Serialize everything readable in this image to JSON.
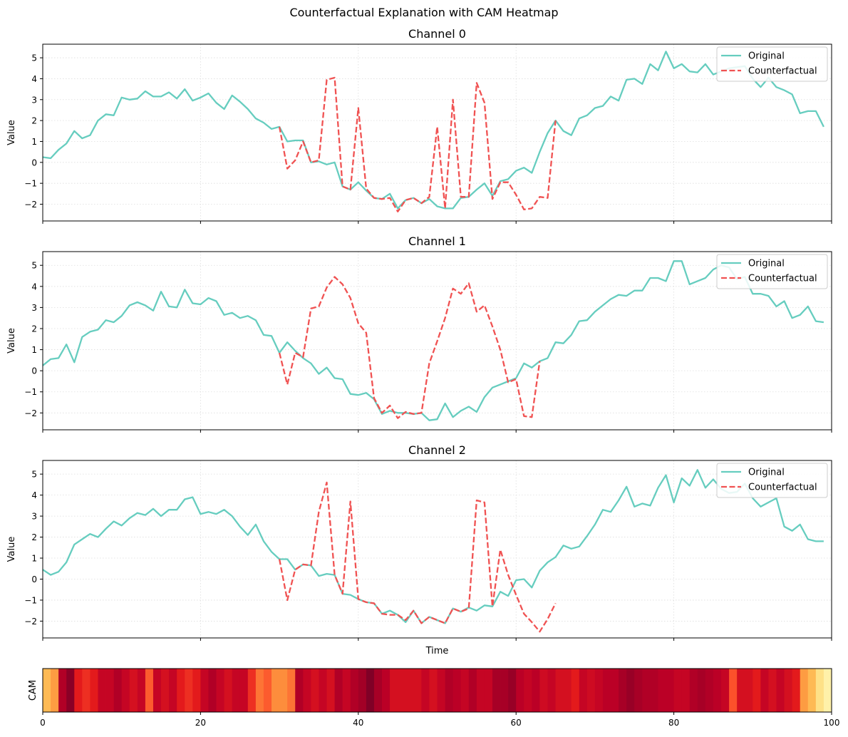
{
  "suptitle": "Counterfactual Explanation with CAM Heatmap",
  "colors": {
    "original": "#66cdbf",
    "counterfactual": "#f05252"
  },
  "chart_data": [
    {
      "type": "line",
      "title": "Channel 0",
      "ylabel": "Value",
      "xlabel": "",
      "xlim": [
        0,
        100
      ],
      "ylim": [
        -2.8,
        5.65
      ],
      "yticks": [
        -2,
        -1,
        0,
        1,
        2,
        3,
        4,
        5
      ],
      "xticks": [
        0,
        20,
        40,
        60,
        80,
        100
      ],
      "show_xticklabels": false,
      "grid": true,
      "legend": "top-right",
      "series": [
        {
          "name": "Original",
          "style": "solid",
          "x": [
            0,
            1,
            2,
            3,
            4,
            5,
            6,
            7,
            8,
            9,
            10,
            11,
            12,
            13,
            14,
            15,
            16,
            17,
            18,
            19,
            20,
            21,
            22,
            23,
            24,
            25,
            26,
            27,
            28,
            29,
            30,
            31,
            32,
            33,
            34,
            35,
            36,
            37,
            38,
            39,
            40,
            41,
            42,
            43,
            44,
            45,
            46,
            47,
            48,
            49,
            50,
            51,
            52,
            53,
            54,
            55,
            56,
            57,
            58,
            59,
            60,
            61,
            62,
            63,
            64,
            65,
            66,
            67,
            68,
            69,
            70,
            71,
            72,
            73,
            74,
            75,
            76,
            77,
            78,
            79,
            80,
            81,
            82,
            83,
            84,
            85,
            86,
            87,
            88,
            89,
            90,
            91,
            92,
            93,
            94,
            95,
            96,
            97,
            98,
            99
          ],
          "y": [
            0.25,
            0.2,
            0.6,
            0.9,
            1.5,
            1.15,
            1.3,
            2.0,
            2.3,
            2.25,
            3.1,
            3.0,
            3.05,
            3.4,
            3.15,
            3.15,
            3.35,
            3.05,
            3.5,
            2.95,
            3.1,
            3.3,
            2.85,
            2.55,
            3.2,
            2.9,
            2.55,
            2.1,
            1.9,
            1.6,
            1.7,
            1.0,
            1.05,
            1.05,
            0.0,
            0.05,
            -0.1,
            0.0,
            -1.15,
            -1.3,
            -0.95,
            -1.35,
            -1.7,
            -1.75,
            -1.5,
            -2.2,
            -1.8,
            -1.7,
            -1.95,
            -1.75,
            -2.1,
            -2.2,
            -2.2,
            -1.7,
            -1.65,
            -1.3,
            -1.0,
            -1.6,
            -0.9,
            -0.8,
            -0.4,
            -0.25,
            -0.5,
            0.5,
            1.4,
            2.0,
            1.5,
            1.3,
            2.1,
            2.25,
            2.6,
            2.7,
            3.15,
            2.95,
            3.95,
            4.0,
            3.75,
            4.7,
            4.4,
            5.3,
            4.5,
            4.7,
            4.35,
            4.3,
            4.7,
            4.2,
            4.35,
            4.5,
            4.55,
            4.6,
            4.0,
            3.6,
            4.05,
            3.6,
            3.45,
            3.25,
            2.35,
            2.45,
            2.45,
            1.7
          ]
        },
        {
          "name": "Counterfactual",
          "style": "dashed",
          "x": [
            30,
            31,
            32,
            33,
            34,
            35,
            36,
            37,
            38,
            39,
            40,
            41,
            42,
            43,
            44,
            45,
            46,
            47,
            48,
            49,
            50,
            51,
            52,
            53,
            54,
            55,
            56,
            57,
            58,
            59,
            60,
            61,
            62,
            63,
            64,
            65
          ],
          "y": [
            1.7,
            -0.3,
            0.1,
            1.0,
            0.0,
            0.1,
            3.95,
            4.05,
            -1.15,
            -1.3,
            2.6,
            -1.25,
            -1.7,
            -1.75,
            -1.7,
            -2.35,
            -1.8,
            -1.7,
            -1.95,
            -1.65,
            1.7,
            -2.2,
            3.0,
            -1.65,
            -1.65,
            3.8,
            2.85,
            -1.75,
            -0.95,
            -0.95,
            -1.55,
            -2.25,
            -2.2,
            -1.65,
            -1.7,
            2.0
          ]
        }
      ]
    },
    {
      "type": "line",
      "title": "Channel 1",
      "ylabel": "Value",
      "xlabel": "",
      "xlim": [
        0,
        100
      ],
      "ylim": [
        -2.8,
        5.65
      ],
      "yticks": [
        -2,
        -1,
        0,
        1,
        2,
        3,
        4,
        5
      ],
      "xticks": [
        0,
        20,
        40,
        60,
        80,
        100
      ],
      "show_xticklabels": false,
      "grid": true,
      "legend": "top-right",
      "series": [
        {
          "name": "Original",
          "style": "solid",
          "x": [
            0,
            1,
            2,
            3,
            4,
            5,
            6,
            7,
            8,
            9,
            10,
            11,
            12,
            13,
            14,
            15,
            16,
            17,
            18,
            19,
            20,
            21,
            22,
            23,
            24,
            25,
            26,
            27,
            28,
            29,
            30,
            31,
            32,
            33,
            34,
            35,
            36,
            37,
            38,
            39,
            40,
            41,
            42,
            43,
            44,
            45,
            46,
            47,
            48,
            49,
            50,
            51,
            52,
            53,
            54,
            55,
            56,
            57,
            58,
            59,
            60,
            61,
            62,
            63,
            64,
            65,
            66,
            67,
            68,
            69,
            70,
            71,
            72,
            73,
            74,
            75,
            76,
            77,
            78,
            79,
            80,
            81,
            82,
            83,
            84,
            85,
            86,
            87,
            88,
            89,
            90,
            91,
            92,
            93,
            94,
            95,
            96,
            97,
            98,
            99
          ],
          "y": [
            0.25,
            0.55,
            0.6,
            1.25,
            0.4,
            1.6,
            1.85,
            1.95,
            2.4,
            2.3,
            2.6,
            3.1,
            3.25,
            3.1,
            2.85,
            3.75,
            3.05,
            3.0,
            3.85,
            3.2,
            3.15,
            3.45,
            3.3,
            2.65,
            2.75,
            2.5,
            2.6,
            2.4,
            1.7,
            1.65,
            0.85,
            1.35,
            0.95,
            0.6,
            0.35,
            -0.15,
            0.15,
            -0.35,
            -0.4,
            -1.1,
            -1.15,
            -1.05,
            -1.35,
            -2.05,
            -1.9,
            -2.0,
            -2.0,
            -2.05,
            -2.0,
            -2.35,
            -2.3,
            -1.55,
            -2.2,
            -1.9,
            -1.7,
            -1.95,
            -1.25,
            -0.8,
            -0.65,
            -0.5,
            -0.35,
            0.35,
            0.15,
            0.45,
            0.6,
            1.35,
            1.3,
            1.7,
            2.35,
            2.4,
            2.8,
            3.1,
            3.4,
            3.6,
            3.55,
            3.8,
            3.8,
            4.4,
            4.4,
            4.25,
            5.2,
            5.2,
            4.1,
            4.25,
            4.4,
            4.8,
            5.0,
            4.9,
            4.35,
            4.45,
            3.65,
            3.65,
            3.55,
            3.05,
            3.3,
            2.5,
            2.65,
            3.05,
            2.35,
            2.3
          ]
        },
        {
          "name": "Counterfactual",
          "style": "dashed",
          "x": [
            30,
            31,
            32,
            33,
            34,
            35,
            36,
            37,
            38,
            39,
            40,
            41,
            42,
            43,
            44,
            45,
            46,
            47,
            48,
            49,
            50,
            51,
            52,
            53,
            54,
            55,
            56,
            57,
            58,
            59,
            60,
            61,
            62,
            63
          ],
          "y": [
            0.85,
            -0.65,
            0.85,
            0.65,
            2.95,
            3.05,
            3.95,
            4.45,
            4.1,
            3.45,
            2.25,
            1.8,
            -1.3,
            -2.0,
            -1.65,
            -2.25,
            -1.95,
            -2.05,
            -2.0,
            0.35,
            1.4,
            2.5,
            3.9,
            3.65,
            4.15,
            2.8,
            3.1,
            2.1,
            1.0,
            -0.55,
            -0.4,
            -2.15,
            -2.2,
            0.45
          ]
        }
      ]
    },
    {
      "type": "line",
      "title": "Channel 2",
      "ylabel": "Value",
      "xlabel": "Time",
      "xlim": [
        0,
        100
      ],
      "ylim": [
        -2.8,
        5.65
      ],
      "yticks": [
        -2,
        -1,
        0,
        1,
        2,
        3,
        4,
        5
      ],
      "xticks": [
        0,
        20,
        40,
        60,
        80,
        100
      ],
      "show_xticklabels": false,
      "grid": true,
      "legend": "top-right",
      "series": [
        {
          "name": "Original",
          "style": "solid",
          "x": [
            0,
            1,
            2,
            3,
            4,
            5,
            6,
            7,
            8,
            9,
            10,
            11,
            12,
            13,
            14,
            15,
            16,
            17,
            18,
            19,
            20,
            21,
            22,
            23,
            24,
            25,
            26,
            27,
            28,
            29,
            30,
            31,
            32,
            33,
            34,
            35,
            36,
            37,
            38,
            39,
            40,
            41,
            42,
            43,
            44,
            45,
            46,
            47,
            48,
            49,
            50,
            51,
            52,
            53,
            54,
            55,
            56,
            57,
            58,
            59,
            60,
            61,
            62,
            63,
            64,
            65,
            66,
            67,
            68,
            69,
            70,
            71,
            72,
            73,
            74,
            75,
            76,
            77,
            78,
            79,
            80,
            81,
            82,
            83,
            84,
            85,
            86,
            87,
            88,
            89,
            90,
            91,
            92,
            93,
            94,
            95,
            96,
            97,
            98,
            99
          ],
          "y": [
            0.45,
            0.2,
            0.35,
            0.8,
            1.65,
            1.9,
            2.15,
            2.0,
            2.4,
            2.75,
            2.55,
            2.9,
            3.15,
            3.05,
            3.35,
            3.0,
            3.3,
            3.3,
            3.8,
            3.9,
            3.1,
            3.2,
            3.1,
            3.3,
            3.0,
            2.5,
            2.1,
            2.6,
            1.8,
            1.3,
            0.95,
            0.95,
            0.45,
            0.7,
            0.65,
            0.15,
            0.25,
            0.2,
            -0.7,
            -0.75,
            -0.95,
            -1.1,
            -1.15,
            -1.65,
            -1.5,
            -1.7,
            -2.05,
            -1.5,
            -2.1,
            -1.8,
            -1.95,
            -2.1,
            -1.4,
            -1.55,
            -1.35,
            -1.5,
            -1.25,
            -1.3,
            -0.6,
            -0.8,
            -0.05,
            0.0,
            -0.4,
            0.4,
            0.8,
            1.05,
            1.6,
            1.45,
            1.55,
            2.05,
            2.6,
            3.3,
            3.2,
            3.75,
            4.4,
            3.45,
            3.6,
            3.5,
            4.35,
            4.95,
            3.65,
            4.8,
            4.45,
            5.2,
            4.35,
            4.75,
            4.3,
            4.1,
            4.15,
            4.55,
            3.85,
            3.45,
            3.65,
            3.85,
            2.5,
            2.3,
            2.6,
            1.9,
            1.8,
            1.8
          ]
        },
        {
          "name": "Counterfactual",
          "style": "dashed",
          "x": [
            30,
            31,
            32,
            33,
            34,
            35,
            36,
            37,
            38,
            39,
            40,
            41,
            42,
            43,
            44,
            45,
            46,
            47,
            48,
            49,
            50,
            51,
            52,
            53,
            54,
            55,
            56,
            57,
            58,
            59,
            60,
            61,
            62,
            63,
            64,
            65
          ],
          "y": [
            0.95,
            -1.0,
            0.45,
            0.7,
            0.65,
            3.2,
            4.6,
            0.2,
            -0.7,
            3.7,
            -0.95,
            -1.1,
            -1.15,
            -1.65,
            -1.7,
            -1.7,
            -1.95,
            -1.5,
            -2.1,
            -1.8,
            -1.95,
            -2.1,
            -1.4,
            -1.55,
            -1.4,
            3.75,
            3.65,
            -1.3,
            1.4,
            0.2,
            -0.75,
            -1.65,
            -2.05,
            -2.5,
            -1.9,
            -1.15
          ]
        }
      ]
    },
    {
      "type": "heatmap",
      "ylabel": "CAM",
      "xlim": [
        0,
        100
      ],
      "xticks": [
        0,
        20,
        40,
        60,
        80,
        100
      ],
      "xticklabels": [
        "0",
        "20",
        "40",
        "60",
        "80",
        "100"
      ],
      "colormap": "YlOrRd",
      "values": [
        0.35,
        0.45,
        0.9,
        0.98,
        0.75,
        0.7,
        0.75,
        0.85,
        0.85,
        0.9,
        0.85,
        0.8,
        0.85,
        0.6,
        0.85,
        0.8,
        0.85,
        0.75,
        0.7,
        0.75,
        0.85,
        0.9,
        0.85,
        0.8,
        0.85,
        0.85,
        0.7,
        0.55,
        0.6,
        0.5,
        0.5,
        0.55,
        0.9,
        0.85,
        0.8,
        0.85,
        0.8,
        0.9,
        0.85,
        0.9,
        0.93,
        1.0,
        0.92,
        0.88,
        0.8,
        0.8,
        0.8,
        0.8,
        0.85,
        0.8,
        0.85,
        0.9,
        0.88,
        0.85,
        0.9,
        0.85,
        0.85,
        0.92,
        0.92,
        0.95,
        0.88,
        0.85,
        0.88,
        0.82,
        0.85,
        0.8,
        0.8,
        0.75,
        0.85,
        0.82,
        0.85,
        0.88,
        0.88,
        0.92,
        0.95,
        0.92,
        0.9,
        0.9,
        0.88,
        0.88,
        0.85,
        0.85,
        0.9,
        0.92,
        0.9,
        0.88,
        0.85,
        0.62,
        0.8,
        0.8,
        0.75,
        0.85,
        0.8,
        0.85,
        0.8,
        0.75,
        0.45,
        0.35,
        0.2,
        0.1
      ]
    }
  ]
}
